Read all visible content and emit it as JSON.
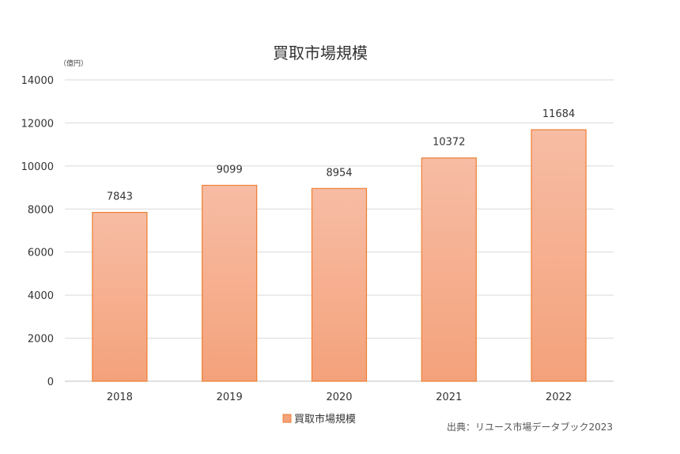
{
  "chart_data": {
    "type": "bar",
    "title": "買取市場規模",
    "unit_label": "（億円）",
    "categories": [
      "2018",
      "2019",
      "2020",
      "2021",
      "2022"
    ],
    "series": [
      {
        "name": "買取市場規模",
        "values": [
          7843,
          9099,
          8954,
          10372,
          11684
        ],
        "color_top": "#f7bca4",
        "color_bottom": "#f4a27b",
        "border_color": "#ed7d31"
      }
    ],
    "ylim": [
      0,
      14000
    ],
    "yticks": [
      0,
      2000,
      4000,
      6000,
      8000,
      10000,
      12000,
      14000
    ],
    "xlabel": "",
    "ylabel": "",
    "grid": true,
    "legend_position": "bottom",
    "data_labels": true
  },
  "source_note": "出典：リユース市場データブック2023"
}
